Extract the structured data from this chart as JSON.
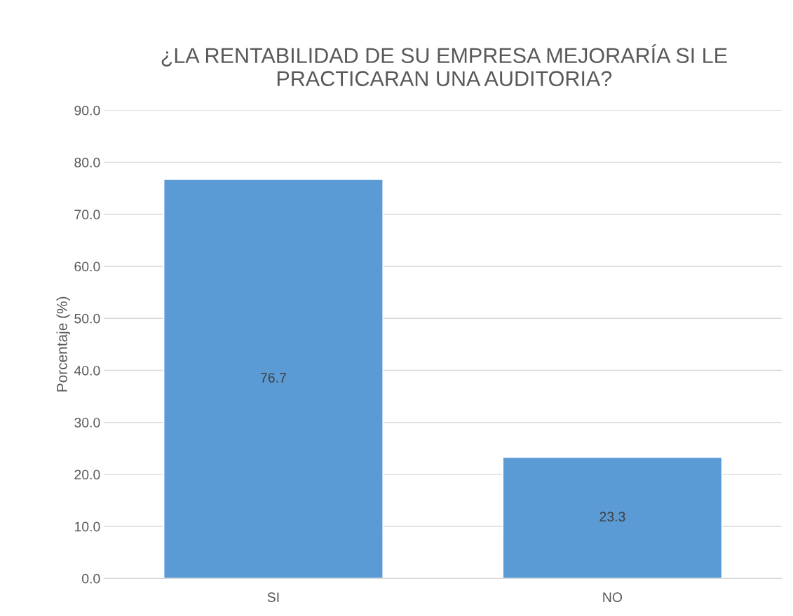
{
  "chart_data": {
    "type": "bar",
    "title": "¿LA RENTABILIDAD DE SU EMPRESA MEJORARÍA SI LE PRACTICARAN UNA AUDITORIA?",
    "ylabel": "Porcentaje (%)",
    "categories": [
      "SI",
      "NO"
    ],
    "values": [
      76.7,
      23.3
    ],
    "color": "#5b9bd5",
    "ylim": [
      0,
      90
    ],
    "yticks": [
      {
        "value": 0,
        "label": "0.0"
      },
      {
        "value": 10,
        "label": "10.0"
      },
      {
        "value": 20,
        "label": "20.0"
      },
      {
        "value": 30,
        "label": "30.0"
      },
      {
        "value": 40,
        "label": "40.0"
      },
      {
        "value": 50,
        "label": "50.0"
      },
      {
        "value": 60,
        "label": "60.0"
      },
      {
        "value": 70,
        "label": "70.0"
      },
      {
        "value": 80,
        "label": "80.0"
      },
      {
        "value": 90,
        "label": "90.0"
      }
    ],
    "grid": "y",
    "data_labels": true,
    "legend": false
  }
}
